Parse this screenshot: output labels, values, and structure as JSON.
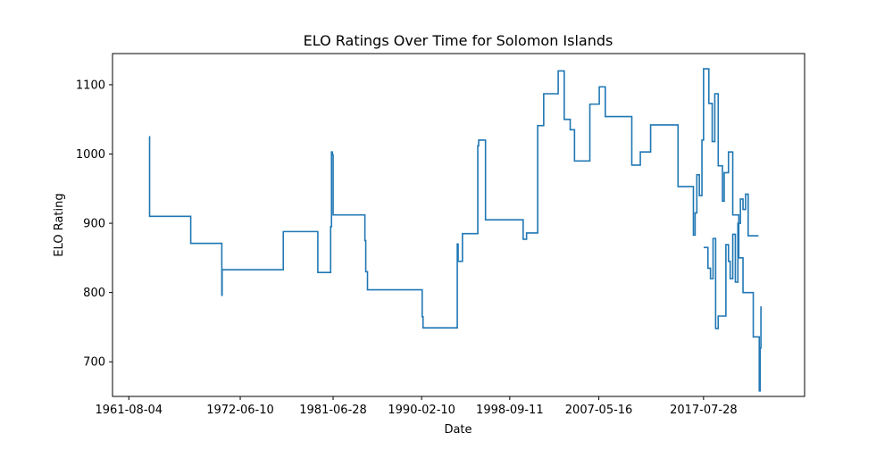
{
  "chart_data": {
    "type": "line",
    "title": "ELO Ratings Over Time for Solomon Islands",
    "xlabel": "Date",
    "ylabel": "ELO Rating",
    "x_ticks": [
      "1961-08-04",
      "1972-06-10",
      "1981-06-28",
      "1990-02-10",
      "1998-09-11",
      "2007-05-16",
      "2017-07-28"
    ],
    "y_ticks": [
      700,
      800,
      900,
      1000,
      1100
    ],
    "xlim": [
      "1960-01-01",
      "2027-06-01"
    ],
    "ylim": [
      650,
      1145
    ],
    "grid": false,
    "line_color": "#1f77b4",
    "series": [
      {
        "x": [
          "1963-08-01",
          "1963-08-12",
          "1967-08-01",
          "1967-08-15",
          "1970-08-01",
          "1970-08-25",
          "1970-09-05",
          "1976-08-01",
          "1976-08-20",
          "1979-08-01",
          "1980-01-01",
          "1980-06-01",
          "1981-04-01",
          "1981-05-01",
          "1981-06-01",
          "1981-06-28",
          "1981-07-10",
          "1984-08-01",
          "1984-09-01",
          "1984-11-01",
          "1990-02-01",
          "1990-03-01",
          "1990-04-01",
          "1990-05-01",
          "1993-08-01",
          "1993-09-01",
          "1994-02-01",
          "1994-06-01",
          "1995-08-01",
          "1995-09-01",
          "1996-05-01",
          "1999-08-01",
          "2000-01-01",
          "2000-05-01",
          "2001-06-01",
          "2002-01-01",
          "2003-06-01",
          "2004-01-01",
          "2004-08-01",
          "2005-01-01",
          "2006-07-01",
          "2007-06-01",
          "2008-01-01",
          "2009-06-01",
          "2010-08-01",
          "2011-06-01",
          "2012-06-01",
          "2015-02-01",
          "2016-06-01",
          "2016-08-01",
          "2016-10-01",
          "2016-12-01",
          "2017-03-01",
          "2017-06-01",
          "2017-07-28",
          "2018-02-01",
          "2018-06-01",
          "2018-09-01",
          "2019-01-01",
          "2019-06-01",
          "2019-08-01",
          "2020-01-01",
          "2020-06-01",
          "2021-01-01",
          "2021-06-01",
          "2022-01-01",
          "2022-06-01",
          "2023-01-01",
          "2023-02-01",
          "2023-03-01"
        ],
        "y": [
          1025,
          910,
          910,
          871,
          871,
          796,
          833,
          833,
          888,
          888,
          829,
          829,
          895,
          1003,
          999,
          912,
          912,
          875,
          830,
          804,
          804,
          765,
          749,
          749,
          870,
          845,
          885,
          885,
          1012,
          1020,
          905,
          905,
          877,
          886,
          1041,
          1087,
          1120,
          1050,
          1035,
          990,
          1072,
          1097,
          1054,
          1054,
          984,
          1003,
          1042,
          953,
          953,
          883,
          915,
          970,
          940,
          1020,
          1123,
          1073,
          1018,
          1087,
          983,
          932,
          973,
          1003,
          912,
          850,
          800,
          800,
          736,
          658,
          720,
          780
        ]
      },
      {
        "x": [
          "2017-08-01",
          "2018-01-01",
          "2018-04-01",
          "2018-07-01",
          "2018-10-01",
          "2019-01-01",
          "2019-04-01",
          "2019-07-01",
          "2019-10-01",
          "2020-01-01",
          "2020-03-01",
          "2020-06-01",
          "2020-09-01",
          "2020-12-01",
          "2021-03-01",
          "2021-06-01",
          "2021-09-01",
          "2021-12-01",
          "2022-03-01",
          "2022-06-01",
          "2022-09-01",
          "2022-12-01"
        ],
        "y": [
          865,
          835,
          820,
          878,
          748,
          766,
          766,
          766,
          869,
          845,
          820,
          884,
          815,
          900,
          935,
          920,
          942,
          882,
          882,
          882,
          882,
          882
        ]
      }
    ]
  }
}
